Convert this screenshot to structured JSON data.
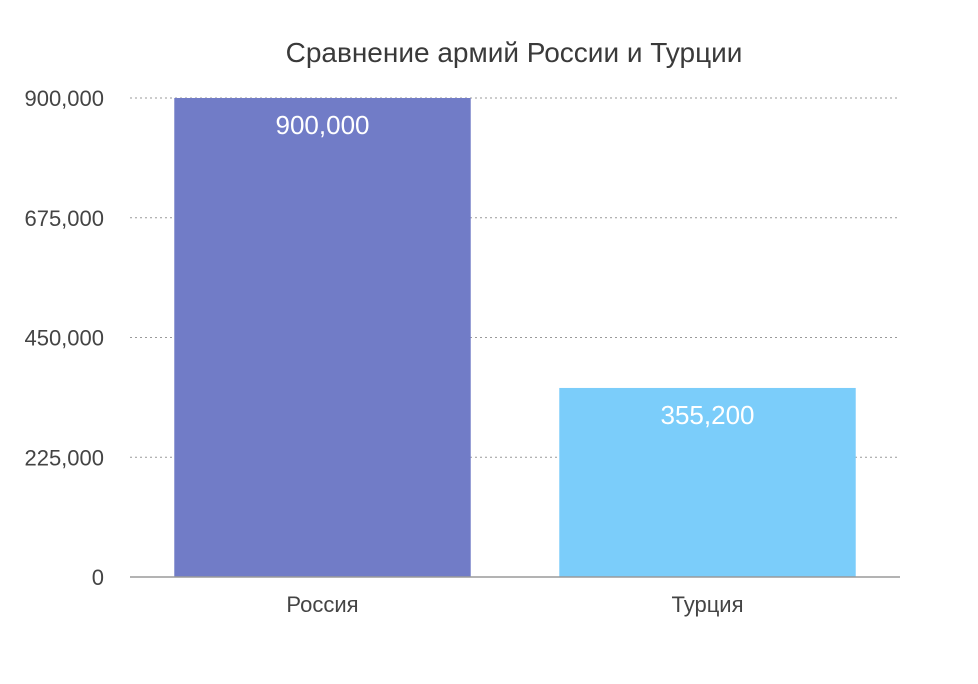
{
  "chart_data": {
    "type": "bar",
    "title": "Сравнение армий России и Турции",
    "xlabel": "",
    "ylabel": "",
    "categories": [
      "Россия",
      "Турция"
    ],
    "values": [
      900000,
      355200
    ],
    "value_labels": [
      "900,000",
      "355,200"
    ],
    "colors": [
      "#717cc7",
      "#7bcdfa"
    ],
    "ylim": [
      0,
      900000
    ],
    "yticks": [
      0,
      225000,
      450000,
      675000,
      900000
    ],
    "ytick_labels": [
      "0",
      "225,000",
      "450,000",
      "675,000",
      "900,000"
    ],
    "grid": true,
    "legend": false
  }
}
